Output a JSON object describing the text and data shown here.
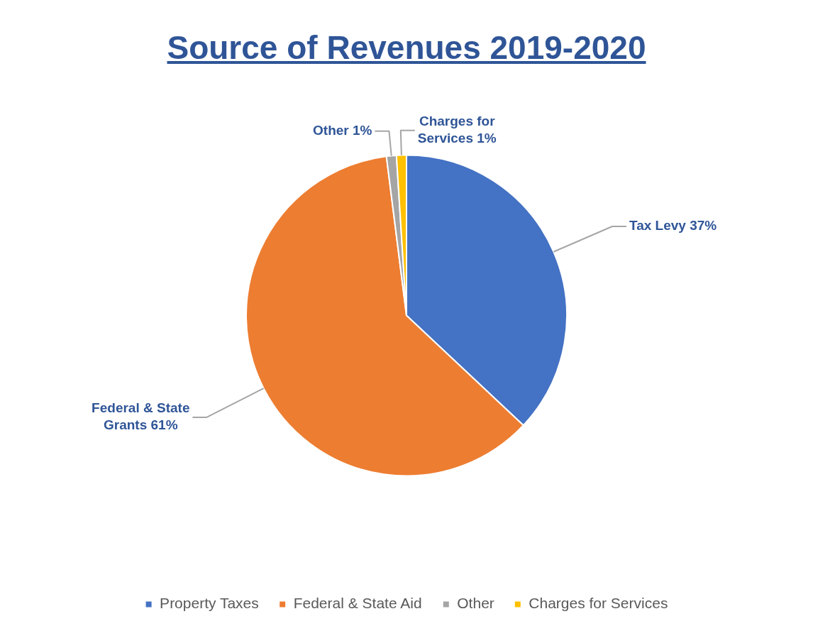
{
  "chart_data": {
    "type": "pie",
    "title": "Source of Revenues 2019-2020",
    "categories": [
      "Property Taxes",
      "Federal & State Aid",
      "Other",
      "Charges for Services"
    ],
    "values": [
      37,
      61,
      1,
      1
    ],
    "colors": [
      "#4472c4",
      "#ed7d31",
      "#a5a5a5",
      "#ffc000"
    ],
    "value_labels": [
      "Tax Levy 37%",
      "Federal & State Grants 61%",
      "Other 1%",
      "Charges for Services 1%"
    ],
    "legend": "bottom"
  }
}
